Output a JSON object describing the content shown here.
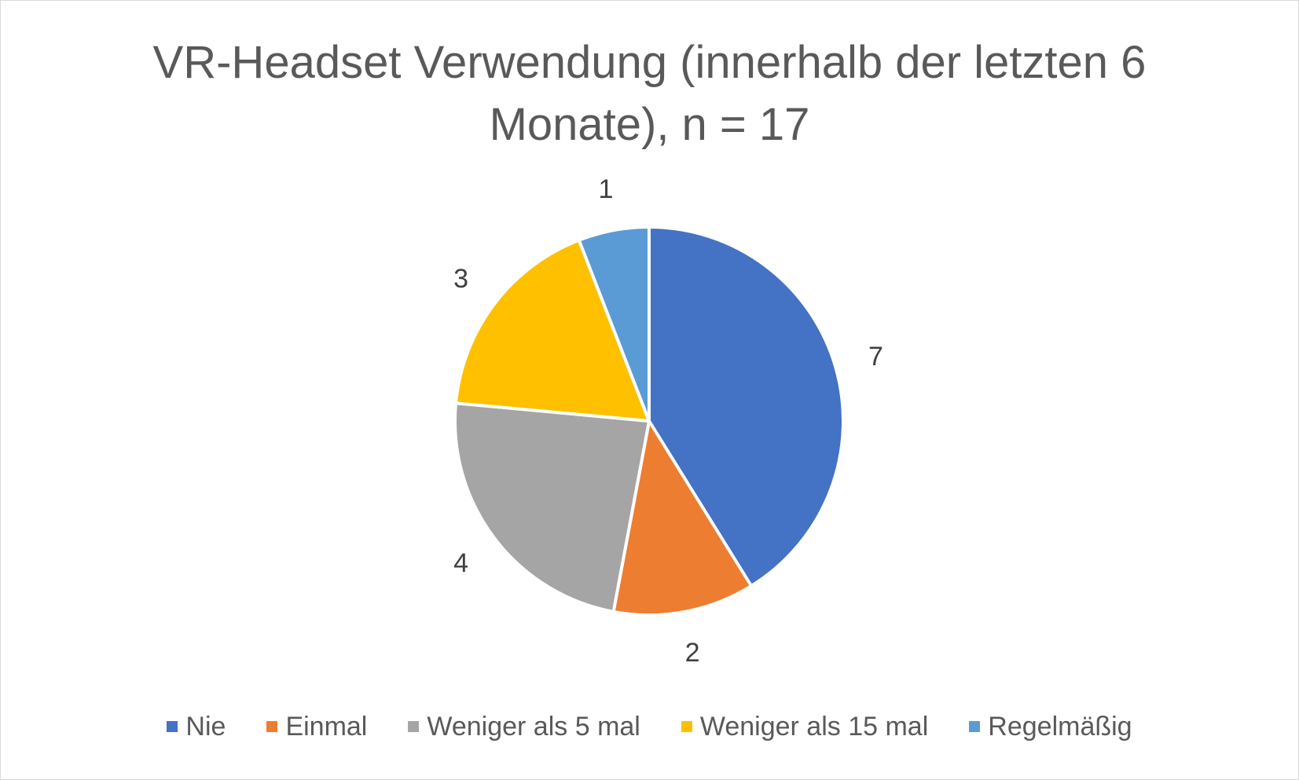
{
  "chart_data": {
    "type": "pie",
    "title_lines": [
      "VR-Headset Verwendung (innerhalb der letzten 6",
      "Monate), n = 17"
    ],
    "categories": [
      "Nie",
      "Einmal",
      "Weniger als 5 mal",
      "Weniger als 15 mal",
      "Regelmäßig"
    ],
    "values": [
      7,
      2,
      4,
      3,
      1
    ],
    "data_labels": [
      "7",
      "2",
      "4",
      "3",
      "1"
    ],
    "colors": [
      "#4472C4",
      "#ED7D31",
      "#A5A5A5",
      "#FFC000",
      "#5B9BD5"
    ],
    "legend_position": "bottom",
    "start_angle": "12 o'clock, clockwise"
  }
}
